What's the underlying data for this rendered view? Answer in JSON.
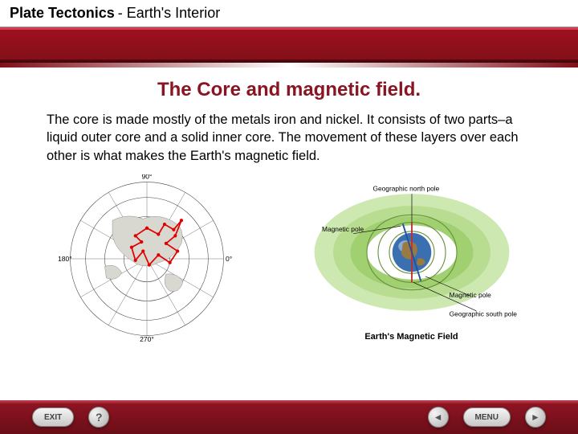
{
  "header": {
    "title_bold": "Plate Tectonics",
    "title_rest": " - Earth's Interior"
  },
  "slide": {
    "title": "The Core and magnetic field.",
    "body": "The core is made mostly of the metals iron and nickel. It consists of two parts–a liquid outer core and a solid inner core. The movement of these layers over each other is what makes the Earth's magnetic field."
  },
  "figure_left": {
    "type": "map",
    "description": "polar-projection-pole-wander",
    "deg_labels": [
      "90°",
      "0°",
      "180°",
      "270°"
    ],
    "ring_radii": [
      30,
      55,
      80,
      100
    ],
    "land_color": "#d8d8d0",
    "ocean_color": "#ffffff",
    "path_color": "#e00000",
    "border_color": "#444444",
    "path_points": [
      [
        115,
        70
      ],
      [
        130,
        78
      ],
      [
        138,
        65
      ],
      [
        150,
        72
      ],
      [
        160,
        60
      ],
      [
        152,
        80
      ],
      [
        140,
        90
      ],
      [
        155,
        100
      ],
      [
        145,
        115
      ],
      [
        130,
        105
      ],
      [
        118,
        118
      ],
      [
        110,
        100
      ],
      [
        100,
        112
      ],
      [
        95,
        95
      ],
      [
        108,
        88
      ],
      [
        100,
        80
      ],
      [
        115,
        70
      ]
    ],
    "land_shapes": [
      "M70,60 Q90,50 110,58 Q130,50 150,62 Q165,70 160,90 Q150,110 130,115 Q110,125 95,112 Q75,100 70,80 Z",
      "M140,130 Q155,128 162,140 Q158,155 145,152 Q135,145 140,130 Z",
      "M60,120 Q75,115 82,128 Q76,140 62,135 Z"
    ]
  },
  "figure_right": {
    "type": "diagram",
    "caption": "Earth's Magnetic Field",
    "labels": {
      "geo_north": "Geographic north pole",
      "geo_south": "Geographic south pole",
      "mag_pole": "Magnetic pole"
    },
    "field_colors": [
      "#cde8b0",
      "#b8dd90",
      "#a0d070",
      "#ffffff"
    ],
    "field_line_color": "#6a9040",
    "earth_ocean": "#3a70b0",
    "earth_land": "#9a7a40",
    "earth_highlight": "#d0e8f5",
    "axis_color": "#c03030",
    "mag_axis_color": "#2050a0",
    "label_fontsize": 9
  },
  "footer": {
    "exit_label": "EXIT",
    "help_label": "?",
    "menu_label": "MENU"
  },
  "colors": {
    "brand_red": "#8a1522",
    "band_red_top": "#a01020",
    "band_red_bottom": "#801018",
    "footer_top": "#901522",
    "footer_bottom": "#6a0e18"
  }
}
